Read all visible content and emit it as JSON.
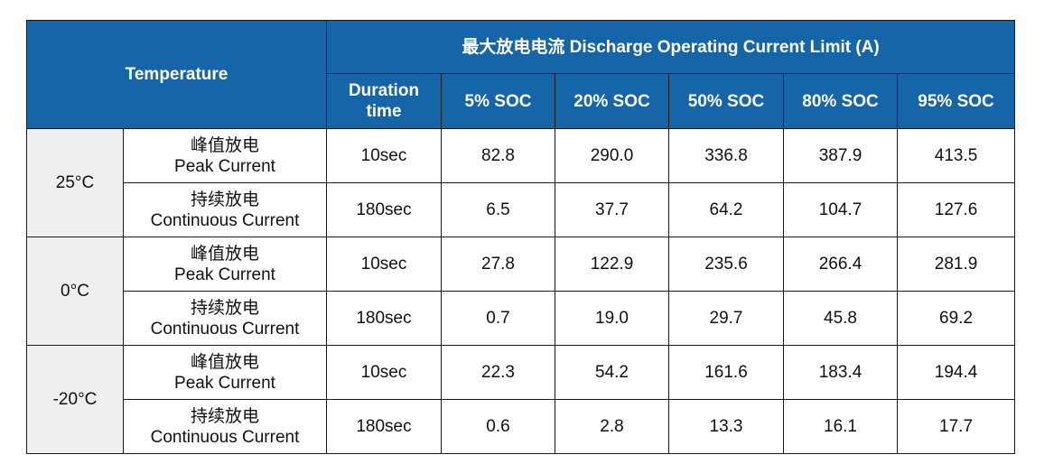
{
  "table": {
    "header": {
      "temperature": "Temperature",
      "group_title": "最大放电电流 Discharge Operating Current Limit (A)",
      "duration": "Duration time",
      "soc_columns": [
        "5% SOC",
        "20% SOC",
        "50% SOC",
        "80% SOC",
        "95% SOC"
      ]
    },
    "groups": [
      {
        "temperature": "25°C",
        "rows": [
          {
            "mode_cn": "峰值放电",
            "mode_en": "Peak Current",
            "duration": "10sec",
            "values": [
              "82.8",
              "290.0",
              "336.8",
              "387.9",
              "413.5"
            ]
          },
          {
            "mode_cn": "持续放电",
            "mode_en": "Continuous Current",
            "duration": "180sec",
            "values": [
              "6.5",
              "37.7",
              "64.2",
              "104.7",
              "127.6"
            ]
          }
        ]
      },
      {
        "temperature": "0°C",
        "rows": [
          {
            "mode_cn": "峰值放电",
            "mode_en": "Peak Current",
            "duration": "10sec",
            "values": [
              "27.8",
              "122.9",
              "235.6",
              "266.4",
              "281.9"
            ]
          },
          {
            "mode_cn": "持续放电",
            "mode_en": "Continuous Current",
            "duration": "180sec",
            "values": [
              "0.7",
              "19.0",
              "29.7",
              "45.8",
              "69.2"
            ]
          }
        ]
      },
      {
        "temperature": "-20°C",
        "rows": [
          {
            "mode_cn": "峰值放电",
            "mode_en": "Peak Current",
            "duration": "10sec",
            "values": [
              "22.3",
              "54.2",
              "161.6",
              "183.4",
              "194.4"
            ]
          },
          {
            "mode_cn": "持续放电",
            "mode_en": "Continuous Current",
            "duration": "180sec",
            "values": [
              "0.6",
              "2.8",
              "13.3",
              "16.1",
              "17.7"
            ]
          }
        ]
      }
    ]
  },
  "colors": {
    "header_bg": "#1565a8",
    "header_text": "#ffffff",
    "temperature_cell_bg": "#efefef",
    "border": "#1a1a1a"
  }
}
